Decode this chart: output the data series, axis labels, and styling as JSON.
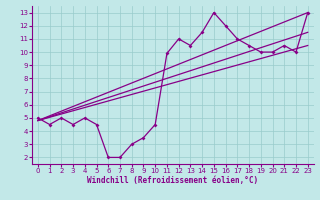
{
  "xlabel": "Windchill (Refroidissement éolien,°C)",
  "bg_color": "#c2e8e8",
  "line_color": "#880088",
  "grid_color": "#99cccc",
  "xlim": [
    -0.5,
    23.5
  ],
  "ylim": [
    1.5,
    13.5
  ],
  "xticks": [
    0,
    1,
    2,
    3,
    4,
    5,
    6,
    7,
    8,
    9,
    10,
    11,
    12,
    13,
    14,
    15,
    16,
    17,
    18,
    19,
    20,
    21,
    22,
    23
  ],
  "yticks": [
    2,
    3,
    4,
    5,
    6,
    7,
    8,
    9,
    10,
    11,
    12,
    13
  ],
  "series1_x": [
    0,
    1,
    2,
    3,
    4,
    5,
    6,
    7,
    8,
    9,
    10,
    11,
    12,
    13,
    14,
    15,
    16,
    17,
    18,
    19,
    20,
    21,
    22,
    23
  ],
  "series1_y": [
    5.0,
    4.5,
    5.0,
    4.5,
    5.0,
    4.5,
    2.0,
    2.0,
    3.0,
    3.5,
    4.5,
    9.9,
    11.0,
    10.5,
    11.5,
    13.0,
    12.0,
    11.0,
    10.5,
    10.0,
    10.0,
    10.5,
    10.0,
    13.0
  ],
  "series2_x": [
    0,
    23
  ],
  "series2_y": [
    4.8,
    13.0
  ],
  "series3_x": [
    0,
    23
  ],
  "series3_y": [
    4.8,
    10.5
  ],
  "series4_x": [
    0,
    23
  ],
  "series4_y": [
    4.8,
    11.5
  ],
  "xlabel_fontsize": 5.5,
  "tick_fontsize": 5
}
